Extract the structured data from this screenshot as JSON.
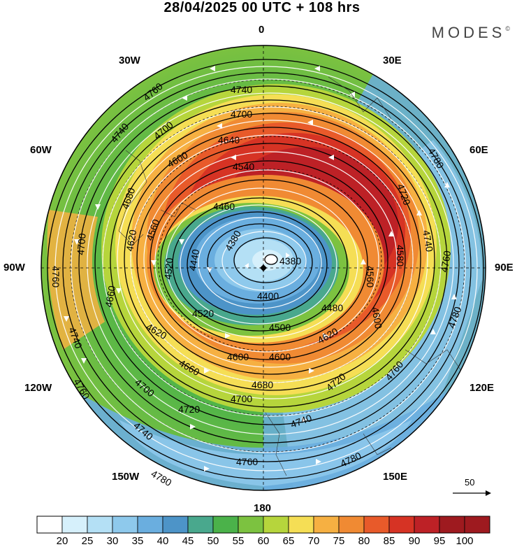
{
  "title": "28/04/2025  00 UTC  + 108 hrs",
  "brand": "MODES",
  "brand_mark": "©",
  "longitude_labels": {
    "n": "0",
    "s": "180",
    "e": "90E",
    "w": "90W",
    "e30": "30E",
    "e60": "60E",
    "e120": "120E",
    "e150": "150E",
    "w30": "30W",
    "w60": "60W",
    "w120": "120W",
    "w150": "150W"
  },
  "contour_labels": [
    "4380",
    "4400",
    "4440",
    "4460",
    "4480",
    "4500",
    "4520",
    "4540",
    "4560",
    "4580",
    "4600",
    "4620",
    "4640",
    "4660",
    "4680",
    "4700",
    "4720",
    "4740",
    "4760",
    "4780"
  ],
  "reference_vector": {
    "label": "50"
  },
  "colorbar": {
    "labels": [
      "20",
      "25",
      "30",
      "35",
      "40",
      "45",
      "50",
      "55",
      "60",
      "65",
      "70",
      "75",
      "80",
      "85",
      "90",
      "95",
      "100"
    ],
    "colors": [
      "#ffffff",
      "#d6f0fb",
      "#b4e0f5",
      "#8ec9ec",
      "#6aaedf",
      "#4d94c8",
      "#49a88d",
      "#4bb24a",
      "#7cc240",
      "#b6d53c",
      "#f5de55",
      "#f6b042",
      "#f08a33",
      "#e85a2a",
      "#d63324",
      "#bd2126",
      "#9e1a1f"
    ]
  }
}
